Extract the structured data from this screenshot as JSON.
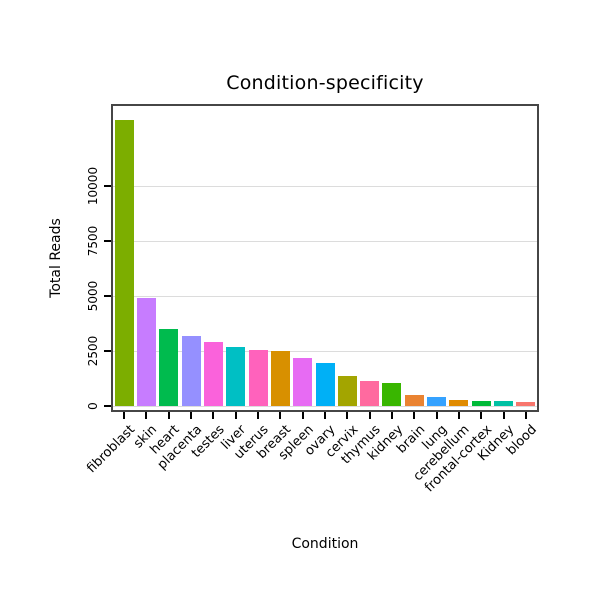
{
  "chart_data": {
    "type": "bar",
    "title": "Condition-specificity",
    "xlabel": "Condition",
    "ylabel": "Total Reads",
    "ylim": [
      0,
      13650
    ],
    "yticks": [
      0,
      2500,
      5000,
      7500,
      10000
    ],
    "grid": "horizontal major gridlines on white panel",
    "legend": "none",
    "categories": [
      "fibroblast",
      "skin",
      "heart",
      "placenta",
      "testes",
      "liver",
      "uterus",
      "breast",
      "spleen",
      "ovary",
      "cervix",
      "thymus",
      "kidney",
      "brain",
      "lung",
      "cerebellum",
      "frontal-cortex",
      "Kidney",
      "blood"
    ],
    "values": [
      13000,
      4900,
      3500,
      3200,
      2900,
      2700,
      2550,
      2500,
      2200,
      1950,
      1350,
      1150,
      1050,
      500,
      400,
      260,
      240,
      210,
      170
    ],
    "colors": [
      "#7CAE00",
      "#C77CFF",
      "#00BB4E",
      "#9590FF",
      "#FA62DB",
      "#00BFC4",
      "#FF62BC",
      "#D89000",
      "#E76BF3",
      "#00B0F6",
      "#A3A500",
      "#FF6A9F",
      "#39B600",
      "#EA8331",
      "#35A2FF",
      "#E08B00",
      "#00BA38",
      "#00C1A3",
      "#F8766D"
    ],
    "panel_border_color": "#464646",
    "gridline_color": "#dcdcdc",
    "tick_color": "#000000",
    "text_color": "#000000"
  }
}
